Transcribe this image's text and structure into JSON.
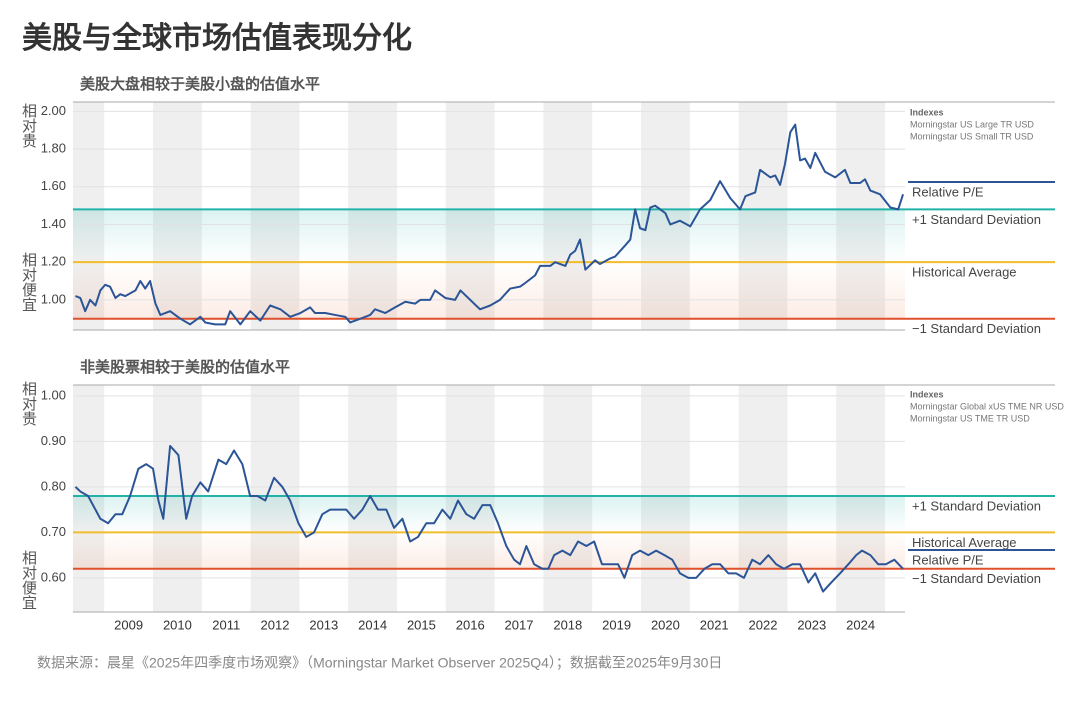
{
  "title": "美股与全球市场估值表现分化",
  "source": "数据来源：晨星《2025年四季度市场观察》（Morningstar Market Observer 2025Q4）；数据截至2025年9月30日",
  "chart_data": [
    {
      "type": "line",
      "title": "美股大盘相较于美股小盘的估值水平",
      "y_label_top": "相对贵",
      "y_label_bottom": "相对便宜",
      "indexes_title": "Indexes",
      "indexes": [
        "Morningstar US Large TR USD",
        "Morningstar US Small TR USD"
      ],
      "xlim": [
        2008.36,
        2025.41
      ],
      "ylim": [
        0.84,
        2.05
      ],
      "yticks": [
        {
          "value": 1,
          "label": "1.00"
        },
        {
          "value": 1.2,
          "label": "1.20"
        },
        {
          "value": 1.4,
          "label": "1.40"
        },
        {
          "value": 1.6,
          "label": "1.60"
        },
        {
          "value": 1.8,
          "label": "1.80"
        },
        {
          "value": 2,
          "label": "2.00"
        }
      ],
      "x": [
        2008.41,
        2008.51,
        2008.61,
        2008.71,
        2008.82,
        2008.92,
        2009.02,
        2009.12,
        2009.23,
        2009.33,
        2009.43,
        2009.64,
        2009.74,
        2009.84,
        2009.94,
        2010.05,
        2010.15,
        2010.35,
        2010.56,
        2010.76,
        2010.97,
        2011.07,
        2011.27,
        2011.48,
        2011.58,
        2011.79,
        2011.99,
        2012.2,
        2012.4,
        2012.61,
        2012.81,
        2013.02,
        2013.22,
        2013.32,
        2013.53,
        2013.73,
        2013.94,
        2014.04,
        2014.25,
        2014.45,
        2014.55,
        2014.76,
        2014.96,
        2015.17,
        2015.37,
        2015.48,
        2015.68,
        2015.78,
        2015.99,
        2016.19,
        2016.3,
        2016.5,
        2016.7,
        2016.91,
        2017.11,
        2017.32,
        2017.52,
        2017.63,
        2017.83,
        2017.93,
        2018.14,
        2018.24,
        2018.45,
        2018.55,
        2018.65,
        2018.75,
        2018.86,
        2019.06,
        2019.16,
        2019.37,
        2019.47,
        2019.68,
        2019.78,
        2019.88,
        2019.98,
        2020.09,
        2020.19,
        2020.29,
        2020.5,
        2020.6,
        2020.8,
        2021.01,
        2021.21,
        2021.42,
        2021.52,
        2021.62,
        2021.83,
        2022.03,
        2022.14,
        2022.34,
        2022.44,
        2022.65,
        2022.75,
        2022.85,
        2022.95,
        2023.06,
        2023.16,
        2023.26,
        2023.36,
        2023.47,
        2023.57,
        2023.77,
        2023.98,
        2024.18,
        2024.29,
        2024.49,
        2024.59,
        2024.7,
        2024.9,
        2025.11,
        2025.27,
        2025.37
      ],
      "series": [
        {
          "name": "Relative P/E",
          "color": "#2c5597",
          "values": [
            1.02,
            1.01,
            0.94,
            1.0,
            0.97,
            1.05,
            1.08,
            1.07,
            1.01,
            1.03,
            1.02,
            1.05,
            1.1,
            1.06,
            1.1,
            0.98,
            0.92,
            0.94,
            0.9,
            0.87,
            0.91,
            0.88,
            0.87,
            0.87,
            0.94,
            0.87,
            0.94,
            0.89,
            0.97,
            0.95,
            0.91,
            0.93,
            0.96,
            0.93,
            0.93,
            0.92,
            0.91,
            0.88,
            0.9,
            0.92,
            0.95,
            0.93,
            0.96,
            0.99,
            0.98,
            1.0,
            1.0,
            1.05,
            1.01,
            1.0,
            1.05,
            1.0,
            0.95,
            0.97,
            1.0,
            1.06,
            1.07,
            1.09,
            1.13,
            1.18,
            1.18,
            1.2,
            1.18,
            1.24,
            1.26,
            1.32,
            1.16,
            1.21,
            1.19,
            1.22,
            1.23,
            1.29,
            1.32,
            1.48,
            1.38,
            1.37,
            1.49,
            1.5,
            1.46,
            1.4,
            1.42,
            1.39,
            1.48,
            1.53,
            1.58,
            1.63,
            1.54,
            1.48,
            1.55,
            1.57,
            1.69,
            1.65,
            1.66,
            1.61,
            1.72,
            1.89,
            1.93,
            1.74,
            1.75,
            1.7,
            1.78,
            1.68,
            1.65,
            1.69,
            1.62,
            1.62,
            1.64,
            1.58,
            1.56,
            1.49,
            1.48,
            1.56
          ]
        }
      ],
      "reference_lines": [
        {
          "name": "+1 Standard Deviation",
          "value": 1.48,
          "color": "#22b3a8"
        },
        {
          "name": "Historical Average",
          "value": 1.2,
          "color": "#f2bd2a"
        },
        {
          "name": "−1 Standard Deviation",
          "value": 0.9,
          "color": "#e0502c"
        }
      ]
    },
    {
      "type": "line",
      "title": "非美股票相较于美股的估值水平",
      "y_label_top": "相对贵",
      "y_label_bottom": "相对便宜",
      "indexes_title": "Indexes",
      "indexes": [
        "Morningstar Global xUS TME NR USD",
        "Morningstar US TME TR USD"
      ],
      "xlim": [
        2008.36,
        2025.41
      ],
      "xticks": [
        2009,
        2010,
        2011,
        2012,
        2013,
        2014,
        2015,
        2016,
        2017,
        2018,
        2019,
        2020,
        2021,
        2022,
        2023,
        2024
      ],
      "ylim": [
        0.525,
        1.024
      ],
      "yticks": [
        {
          "value": 0.6,
          "label": "0.60"
        },
        {
          "value": 0.7,
          "label": "0.70"
        },
        {
          "value": 0.8,
          "label": "0.80"
        },
        {
          "value": 0.9,
          "label": "0.90"
        },
        {
          "value": 1,
          "label": "1.00"
        }
      ],
      "x": [
        2008.41,
        2008.51,
        2008.67,
        2008.82,
        2008.92,
        2009.08,
        2009.23,
        2009.37,
        2009.53,
        2009.7,
        2009.86,
        2010.0,
        2010.11,
        2010.21,
        2010.35,
        2010.52,
        2010.68,
        2010.8,
        2010.97,
        2011.13,
        2011.34,
        2011.5,
        2011.66,
        2011.83,
        2011.99,
        2012.14,
        2012.3,
        2012.48,
        2012.65,
        2012.81,
        2012.98,
        2013.14,
        2013.3,
        2013.47,
        2013.63,
        2013.8,
        2013.96,
        2014.12,
        2014.29,
        2014.45,
        2014.61,
        2014.78,
        2014.94,
        2015.11,
        2015.27,
        2015.43,
        2015.6,
        2015.76,
        2015.93,
        2016.09,
        2016.25,
        2016.42,
        2016.58,
        2016.75,
        2016.91,
        2017.07,
        2017.24,
        2017.4,
        2017.52,
        2017.65,
        2017.81,
        2017.98,
        2018.1,
        2018.22,
        2018.39,
        2018.55,
        2018.71,
        2018.88,
        2019.04,
        2019.2,
        2019.37,
        2019.53,
        2019.66,
        2019.82,
        2019.98,
        2020.15,
        2020.31,
        2020.48,
        2020.64,
        2020.8,
        2020.97,
        2021.13,
        2021.3,
        2021.46,
        2021.62,
        2021.79,
        2021.95,
        2022.11,
        2022.28,
        2022.44,
        2022.61,
        2022.77,
        2022.93,
        2023.1,
        2023.26,
        2023.43,
        2023.57,
        2023.73,
        2023.9,
        2024.08,
        2024.25,
        2024.41,
        2024.53,
        2024.7,
        2024.86,
        2025.02,
        2025.19,
        2025.37
      ],
      "series": [
        {
          "name": "Relative P/E",
          "color": "#2c5597",
          "values": [
            0.8,
            0.79,
            0.78,
            0.75,
            0.73,
            0.72,
            0.74,
            0.74,
            0.78,
            0.84,
            0.85,
            0.84,
            0.77,
            0.73,
            0.89,
            0.87,
            0.73,
            0.78,
            0.81,
            0.79,
            0.86,
            0.85,
            0.88,
            0.85,
            0.78,
            0.78,
            0.77,
            0.82,
            0.8,
            0.77,
            0.72,
            0.69,
            0.7,
            0.74,
            0.75,
            0.75,
            0.75,
            0.73,
            0.75,
            0.78,
            0.75,
            0.75,
            0.71,
            0.73,
            0.68,
            0.69,
            0.72,
            0.72,
            0.75,
            0.73,
            0.77,
            0.74,
            0.73,
            0.76,
            0.76,
            0.72,
            0.67,
            0.64,
            0.63,
            0.67,
            0.63,
            0.62,
            0.62,
            0.65,
            0.66,
            0.65,
            0.68,
            0.67,
            0.68,
            0.63,
            0.63,
            0.63,
            0.6,
            0.65,
            0.66,
            0.65,
            0.66,
            0.65,
            0.64,
            0.61,
            0.6,
            0.6,
            0.62,
            0.63,
            0.63,
            0.61,
            0.61,
            0.6,
            0.64,
            0.63,
            0.65,
            0.63,
            0.62,
            0.63,
            0.63,
            0.59,
            0.61,
            0.57,
            0.59,
            0.61,
            0.63,
            0.65,
            0.66,
            0.65,
            0.63,
            0.63,
            0.64,
            0.62
          ]
        }
      ],
      "reference_lines": [
        {
          "name": "+1 Standard Deviation",
          "value": 0.78,
          "color": "#22b3a8"
        },
        {
          "name": "Historical Average",
          "value": 0.7,
          "color": "#f2bd2a"
        },
        {
          "name": "−1 Standard Deviation",
          "value": 0.62,
          "color": "#e0502c"
        }
      ]
    }
  ]
}
